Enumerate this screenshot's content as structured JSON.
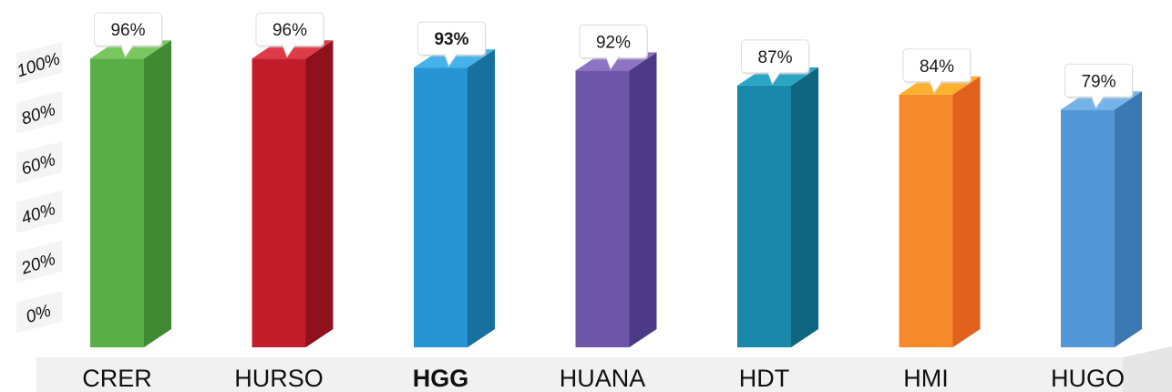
{
  "chart_data": {
    "type": "bar",
    "categories": [
      "CRER",
      "HURSO",
      "HGG",
      "HUANA",
      "HDT",
      "HMI",
      "HUGO"
    ],
    "values": [
      96,
      96,
      93,
      92,
      87,
      84,
      79
    ],
    "data_labels": [
      "96%",
      "96%",
      "93%",
      "92%",
      "87%",
      "84%",
      "79%"
    ],
    "highlighted_category": "HGG",
    "yticks": [
      "0%",
      "20%",
      "40%",
      "60%",
      "80%",
      "100%"
    ],
    "ylim": [
      0,
      100
    ],
    "grid": false,
    "title": "",
    "xlabel": "",
    "ylabel": "",
    "colors": {
      "CRER": {
        "front": "#5aae48",
        "side": "#3f8a32",
        "top": "#78c85e"
      },
      "HURSO": {
        "front": "#c21d2b",
        "side": "#8f111d",
        "top": "#de3a48"
      },
      "HGG": {
        "front": "#2795d4",
        "side": "#17709f",
        "top": "#45b3ea"
      },
      "HUANA": {
        "front": "#6d55a8",
        "side": "#4c3a86",
        "top": "#8d74c2"
      },
      "HDT": {
        "front": "#1a88a8",
        "side": "#10657f",
        "top": "#2aa6c4"
      },
      "HMI": {
        "front": "#f58a2a",
        "side": "#e0621c",
        "top": "#ffb02e"
      },
      "HUGO": {
        "front": "#5298d6",
        "side": "#3b78b4",
        "top": "#74b4ea"
      }
    }
  }
}
